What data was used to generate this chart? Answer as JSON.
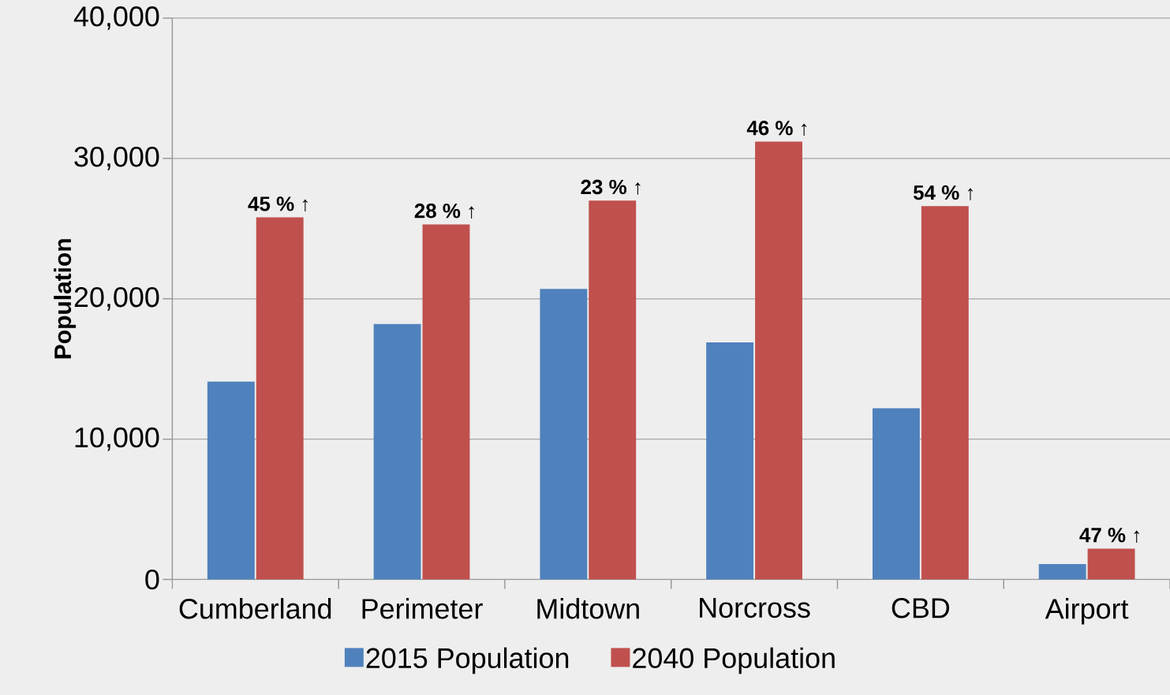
{
  "chart_data": {
    "type": "bar",
    "ylabel": "Population",
    "categories": [
      "Cumberland",
      "Perimeter",
      "Midtown",
      "Norcross",
      "CBD",
      "Airport"
    ],
    "series": [
      {
        "name": "2015 Population",
        "color": "#4f81bd",
        "values": [
          14100,
          18200,
          20700,
          16900,
          12200,
          1100
        ]
      },
      {
        "name": "2040 Population",
        "color": "#c0504d",
        "values": [
          25800,
          25300,
          27000,
          31200,
          26600,
          2200
        ]
      }
    ],
    "ylim": [
      0,
      40000
    ],
    "yticks": [
      {
        "value": 0,
        "label": "0"
      },
      {
        "value": 10000,
        "label": "10,000"
      },
      {
        "value": 20000,
        "label": "20,000"
      },
      {
        "value": 30000,
        "label": "30,000"
      },
      {
        "value": 40000,
        "label": "40,000"
      }
    ],
    "grid": "y",
    "legend": "bottom",
    "annotations": [
      {
        "text": "45 % ↑",
        "x": "Cumberland",
        "y": 25800
      },
      {
        "text": "28 % ↑",
        "x": "Perimeter",
        "y": 25300
      },
      {
        "text": "23 % ↑",
        "x": "Midtown",
        "y": 27000
      },
      {
        "text": "46 % ↑",
        "x": "Norcross",
        "y": 31200
      },
      {
        "text": "54 % ↑",
        "x": "CBD",
        "y": 26600
      },
      {
        "text": "47 % ↑",
        "x": "Airport",
        "y": 2200
      }
    ]
  }
}
